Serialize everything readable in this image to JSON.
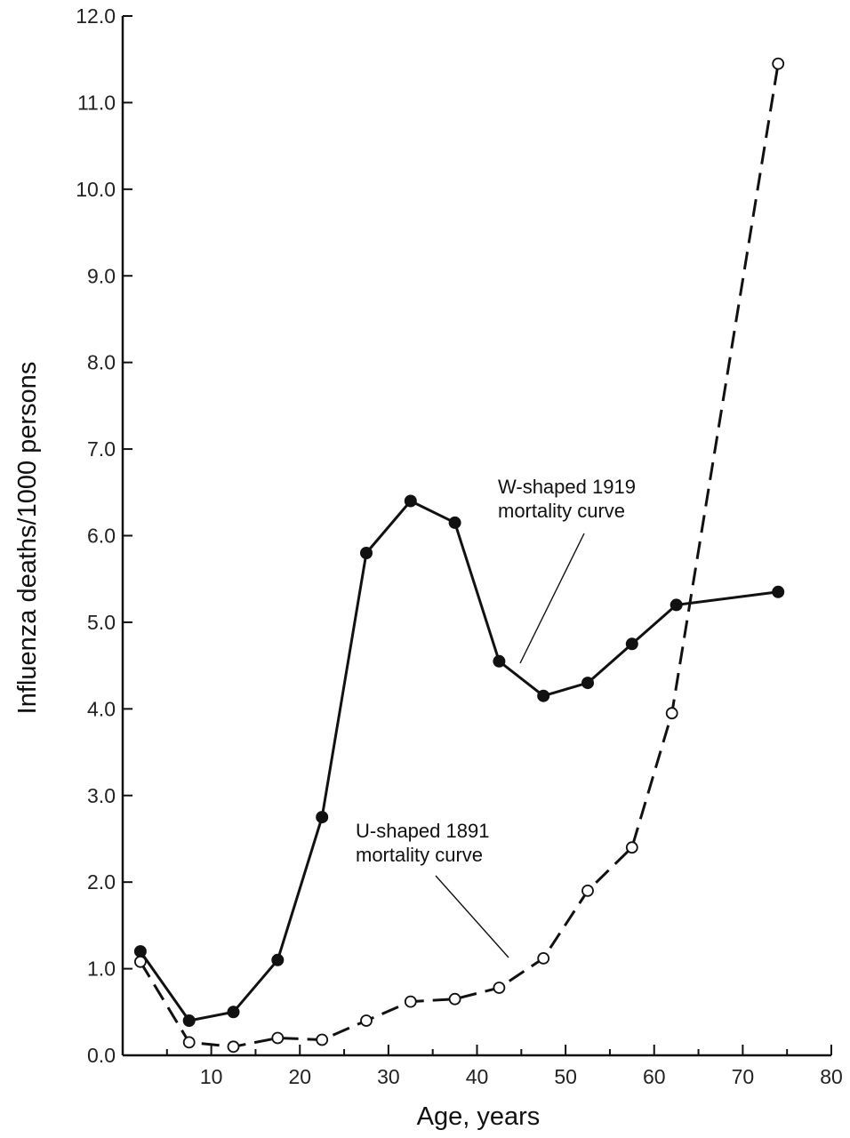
{
  "chart_data": {
    "type": "line",
    "title": "",
    "xlabel": "Age, years",
    "ylabel": "Influenza deaths/1000 persons",
    "xlim": [
      0,
      80
    ],
    "ylim": [
      0,
      12
    ],
    "x_ticks": [
      "10",
      "20",
      "30",
      "40",
      "50",
      "60",
      "70",
      "80"
    ],
    "y_ticks": [
      "0.0",
      "1.0",
      "2.0",
      "3.0",
      "4.0",
      "5.0",
      "6.0",
      "7.0",
      "8.0",
      "9.0",
      "10.0",
      "11.0",
      "12.0"
    ],
    "grid": false,
    "series": [
      {
        "name": "W-shaped 1919 mortality curve",
        "style": "solid",
        "marker": "filled-circle",
        "color": "#111111",
        "x": [
          2,
          7.5,
          12.5,
          17.5,
          22.5,
          27.5,
          32.5,
          37.5,
          42.5,
          47.5,
          52.5,
          57.5,
          62.5,
          74
        ],
        "y": [
          1.2,
          0.4,
          0.5,
          1.1,
          2.75,
          5.8,
          6.4,
          6.15,
          4.55,
          4.15,
          4.3,
          4.75,
          5.2,
          5.35
        ]
      },
      {
        "name": "U-shaped 1891 mortality curve",
        "style": "dashed",
        "marker": "open-circle",
        "color": "#111111",
        "x": [
          2,
          7.5,
          12.5,
          17.5,
          22.5,
          27.5,
          32.5,
          37.5,
          42.5,
          47.5,
          52.5,
          57.5,
          62,
          74
        ],
        "y": [
          1.08,
          0.15,
          0.1,
          0.2,
          0.18,
          0.4,
          0.62,
          0.65,
          0.78,
          1.12,
          1.9,
          2.4,
          3.95,
          11.45
        ]
      }
    ],
    "annotations": [
      {
        "line1": "W-shaped 1919",
        "line2": "mortality curve",
        "target": "W-shaped 1919 mortality curve"
      },
      {
        "line1": "U-shaped 1891",
        "line2": "mortality curve",
        "target": "U-shaped 1891 mortality curve"
      }
    ]
  }
}
